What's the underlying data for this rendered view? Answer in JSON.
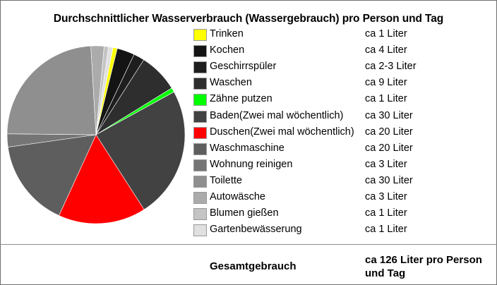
{
  "chart_data": {
    "type": "pie",
    "title": "Durchschnittlicher Wasserverbrauch (Wassergebrauch) pro Person und Tag",
    "start_angle_deg": 11,
    "slices": [
      {
        "label": "Trinken",
        "value_text": "ca 1 Liter",
        "value": 1,
        "color": "#ffff00"
      },
      {
        "label": "Kochen",
        "value_text": "ca 4 Liter",
        "value": 4,
        "color": "#141414"
      },
      {
        "label": "Geschirrspüler",
        "value_text": "ca 2-3 Liter",
        "value": 2.5,
        "color": "#1e1e1e"
      },
      {
        "label": "Waschen",
        "value_text": "ca 9 Liter",
        "value": 9,
        "color": "#2e2e2e"
      },
      {
        "label": "Zähne putzen",
        "value_text": "ca 1 Liter",
        "value": 1,
        "color": "#00ff00"
      },
      {
        "label": "Baden(Zwei mal wöchentlich)",
        "value_text": "ca 30 Liter",
        "value": 30,
        "color": "#424242"
      },
      {
        "label": "Duschen(Zwei mal wöchentlich)",
        "value_text": "ca 20 Liter",
        "value": 20,
        "color": "#ff0000"
      },
      {
        "label": "Waschmaschine",
        "value_text": "ca 20 Liter",
        "value": 20,
        "color": "#5e5e5e"
      },
      {
        "label": "Wohnung reinigen",
        "value_text": "ca 3 Liter",
        "value": 3,
        "color": "#757575"
      },
      {
        "label": "Toilette",
        "value_text": "ca 30 Liter",
        "value": 30,
        "color": "#8f8f8f"
      },
      {
        "label": "Autowäsche",
        "value_text": "ca 3 Liter",
        "value": 3,
        "color": "#ababab"
      },
      {
        "label": "Blumen gießen",
        "value_text": "ca 1 Liter",
        "value": 1,
        "color": "#c4c4c4"
      },
      {
        "label": "Gartenbewässerung",
        "value_text": "ca 1 Liter",
        "value": 1,
        "color": "#e0e0e0"
      }
    ]
  },
  "total": {
    "label": "Gesamtgebrauch",
    "value": "ca 126 Liter pro Person und Tag"
  }
}
